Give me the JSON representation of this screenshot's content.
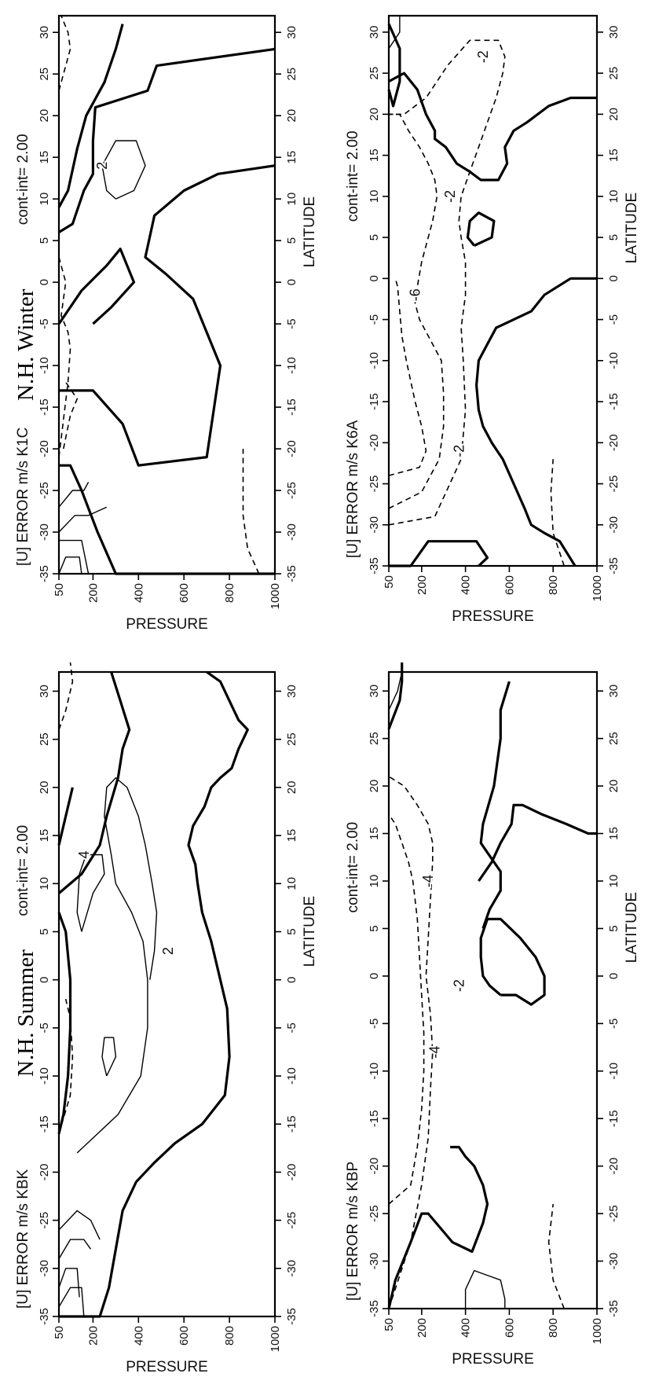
{
  "figure": {
    "season_titles": [
      "N.H. Summer",
      "N.H. Winter"
    ]
  },
  "chart_data": [
    {
      "type": "contour",
      "season": "N.H. Summer",
      "title": "[U] ERROR m/s  K1C",
      "contour_interval": "cont-int= 2.00",
      "xlabel": "LATITUDE",
      "ylabel": "PRESSURE",
      "xlim": [
        -35,
        32
      ],
      "ylim": [
        1000,
        50
      ],
      "x_ticks": [
        -35,
        -30,
        -25,
        -20,
        -15,
        -10,
        -5,
        0,
        5,
        10,
        15,
        20,
        25,
        30
      ],
      "x_tick_labels": [
        "-35",
        "-30",
        "-25",
        "-20",
        "-15",
        "-10",
        "-5",
        "0",
        "5",
        "10",
        "15",
        "20",
        "25",
        "30"
      ],
      "y_ticks": [
        50,
        200,
        400,
        600,
        800,
        1000
      ],
      "y_tick_labels": [
        "50",
        "200",
        "400",
        "600",
        "800",
        "1000"
      ],
      "contour_labels": [
        {
          "text": "2",
          "lat": 14,
          "p": 240
        }
      ]
    },
    {
      "type": "contour",
      "season": "N.H. Winter",
      "title": "[U] ERROR m/s  K6A",
      "contour_interval": "cont-int= 2.00",
      "xlabel": "LATITUDE",
      "ylabel": "PRESSURE",
      "xlim": [
        -35,
        32
      ],
      "ylim": [
        1000,
        50
      ],
      "x_ticks": [
        -35,
        -30,
        -25,
        -20,
        -15,
        -10,
        -5,
        0,
        5,
        10,
        15,
        20,
        25,
        30
      ],
      "x_tick_labels": [
        "-35",
        "-30",
        "-25",
        "-20",
        "-15",
        "-10",
        "-5",
        "0",
        "5",
        "10",
        "15",
        "20",
        "25",
        "30"
      ],
      "y_ticks": [
        50,
        200,
        400,
        600,
        800,
        1000
      ],
      "y_tick_labels": [
        "50",
        "200",
        "400",
        "600",
        "800",
        "1000"
      ],
      "contour_labels": [
        {
          "text": "-6",
          "lat": -2,
          "p": 170
        },
        {
          "text": "-2",
          "lat": 10,
          "p": 330
        },
        {
          "text": "-2",
          "lat": -21,
          "p": 370
        },
        {
          "text": "-2",
          "lat": 27,
          "p": 480
        }
      ]
    },
    {
      "type": "contour",
      "season": "N.H. Summer",
      "title": "[U] ERROR m/s  KBK",
      "contour_interval": "cont-int= 2.00",
      "xlabel": "LATITUDE",
      "ylabel": "PRESSURE",
      "xlim": [
        -35,
        32
      ],
      "ylim": [
        1000,
        50
      ],
      "x_ticks": [
        -35,
        -30,
        -25,
        -20,
        -15,
        -10,
        -5,
        0,
        5,
        10,
        15,
        20,
        25,
        30
      ],
      "x_tick_labels": [
        "-35",
        "-30",
        "-25",
        "-20",
        "-15",
        "-10",
        "-5",
        "0",
        "5",
        "10",
        "15",
        "20",
        "25",
        "30"
      ],
      "y_ticks": [
        50,
        200,
        400,
        600,
        800,
        1000
      ],
      "y_tick_labels": [
        "50",
        "200",
        "400",
        "600",
        "800",
        "1000"
      ],
      "contour_labels": [
        {
          "text": "4",
          "lat": 13,
          "p": 160
        },
        {
          "text": "2",
          "lat": 3,
          "p": 530
        }
      ]
    },
    {
      "type": "contour",
      "season": "N.H. Winter",
      "title": "[U] ERROR m/s  KBP",
      "contour_interval": "cont-int= 2.00",
      "xlabel": "LATITUDE",
      "ylabel": "PRESSURE",
      "xlim": [
        -35,
        32
      ],
      "ylim": [
        1000,
        50
      ],
      "x_ticks": [
        -35,
        -30,
        -25,
        -20,
        -15,
        -10,
        -5,
        0,
        5,
        10,
        15,
        20,
        25,
        30
      ],
      "x_tick_labels": [
        "-35",
        "-30",
        "-25",
        "-20",
        "-15",
        "-10",
        "-5",
        "0",
        "5",
        "10",
        "15",
        "20",
        "25",
        "30"
      ],
      "y_ticks": [
        50,
        200,
        400,
        600,
        800,
        1000
      ],
      "y_tick_labels": [
        "50",
        "200",
        "400",
        "600",
        "800",
        "1000"
      ],
      "contour_labels": [
        {
          "text": "-4",
          "lat": 10,
          "p": 230
        },
        {
          "text": "-4",
          "lat": -8,
          "p": 260
        },
        {
          "text": "-2",
          "lat": -1,
          "p": 370
        }
      ]
    }
  ]
}
